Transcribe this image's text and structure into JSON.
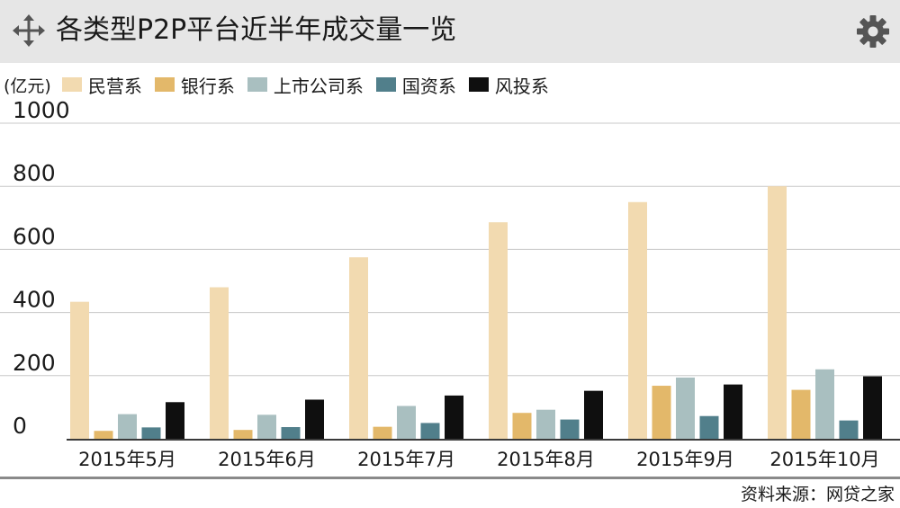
{
  "title": "各类型P2P平台近半年成交量一览",
  "icons": {
    "move": "move-arrows-icon",
    "settings": "gear-icon"
  },
  "unit_label": "(亿元)",
  "source": "资料来源：网贷之家",
  "colors": {
    "header_bg": "#e6e6e6",
    "grid": "#c8c8c8",
    "axis": "#3a3a3a",
    "series": [
      "#f2dab0",
      "#e3b86a",
      "#a9bfc0",
      "#517f8b",
      "#0f0f0f"
    ]
  },
  "chart_data": {
    "type": "bar",
    "title": "各类型P2P平台近半年成交量一览",
    "ylabel": "(亿元)",
    "xlabel": "",
    "ylim": [
      0,
      1000
    ],
    "yticks": [
      0,
      200,
      400,
      600,
      800,
      1000
    ],
    "grid": true,
    "legend_position": "top-left",
    "categories": [
      "2015年5月",
      "2015年6月",
      "2015年7月",
      "2015年8月",
      "2015年9月",
      "2015年10月"
    ],
    "series": [
      {
        "name": "民营系",
        "values": [
          434,
          480,
          575,
          686,
          750,
          800
        ]
      },
      {
        "name": "银行系",
        "values": [
          25,
          28,
          38,
          82,
          168,
          155
        ]
      },
      {
        "name": "上市公司系",
        "values": [
          78,
          76,
          104,
          92,
          194,
          220
        ]
      },
      {
        "name": "国资系",
        "values": [
          36,
          37,
          50,
          61,
          72,
          58
        ]
      },
      {
        "name": "风投系",
        "values": [
          116,
          124,
          137,
          152,
          172,
          198
        ]
      }
    ]
  }
}
